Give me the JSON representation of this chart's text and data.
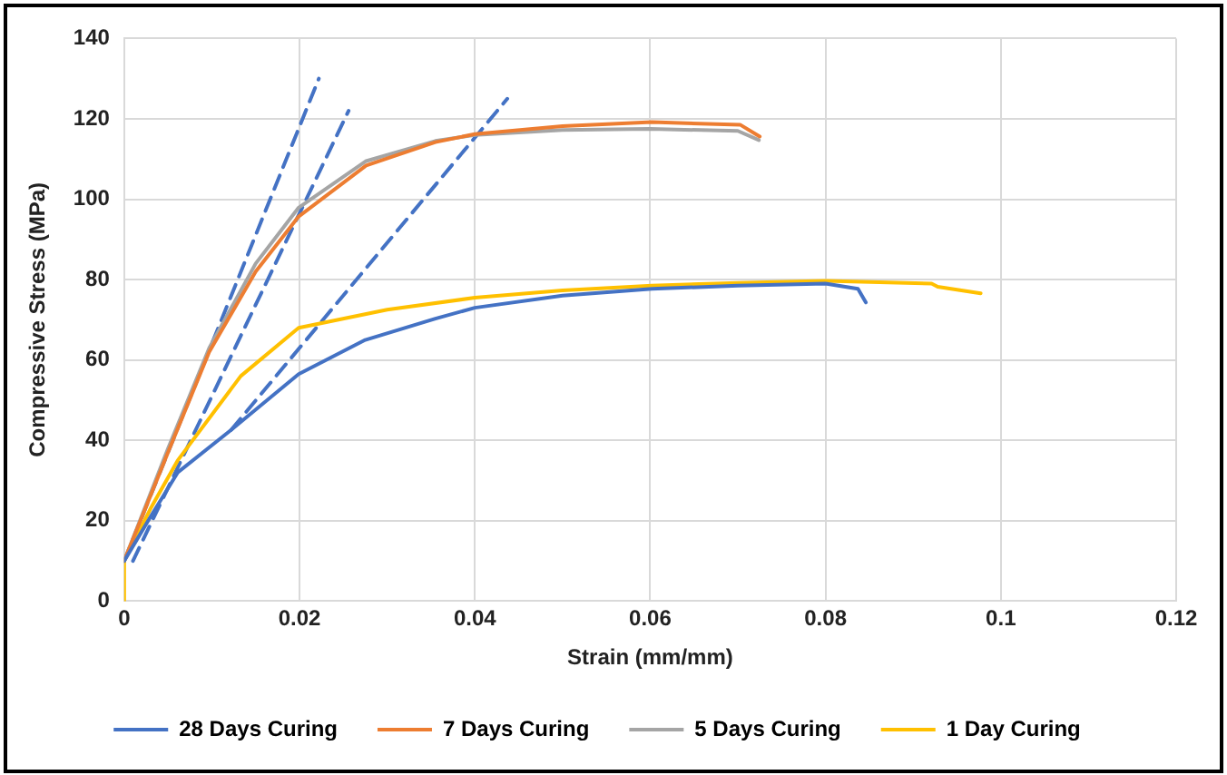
{
  "chart_data": {
    "type": "line",
    "xlabel": "Strain (mm/mm)",
    "ylabel": "Compressive Stress (MPa)",
    "xlim": [
      0,
      0.12
    ],
    "xticks": [
      0,
      0.02,
      0.04,
      0.06,
      0.08,
      0.1,
      0.12
    ],
    "ylim": [
      0,
      140
    ],
    "yticks": [
      0,
      20,
      40,
      60,
      80,
      100,
      120,
      140
    ],
    "grid": true,
    "legend": "bottom",
    "marker": "none",
    "line_style": "solid",
    "series": [
      {
        "name": "28 Days Curing",
        "color": "#4472c4",
        "x": [
          0,
          0.003,
          0.0061,
          0.0122,
          0.0199,
          0.0275,
          0.0355,
          0.04,
          0.05,
          0.0602,
          0.07,
          0.08,
          0.0837,
          0.0846
        ],
        "values": [
          10,
          21,
          32,
          42.6,
          56.5,
          65,
          70.3,
          73,
          76,
          77.7,
          78.5,
          79,
          77.7,
          74.3
        ]
      },
      {
        "name": "7 Days Curing",
        "color": "#ed7d31",
        "x": [
          0,
          0.005,
          0.0097,
          0.015,
          0.0199,
          0.0276,
          0.0355,
          0.04,
          0.05,
          0.0602,
          0.0703,
          0.0725
        ],
        "values": [
          10,
          37,
          62,
          82,
          95.7,
          108.4,
          114.2,
          116.2,
          118.2,
          119.2,
          118.5,
          115.6
        ]
      },
      {
        "name": "5 Days Curing",
        "color": "#a5a5a5",
        "x": [
          0,
          0.005,
          0.0097,
          0.015,
          0.0199,
          0.0276,
          0.0355,
          0.04,
          0.05,
          0.06,
          0.07,
          0.0724
        ],
        "values": [
          10,
          38,
          63,
          84,
          97.9,
          109.5,
          114.5,
          116,
          117.2,
          117.5,
          117,
          114.7
        ]
      },
      {
        "name": "1 Day Curing",
        "color": "#ffc000",
        "x": [
          0,
          0,
          0.003,
          0.0061,
          0.0133,
          0.0199,
          0.03,
          0.04,
          0.05,
          0.0602,
          0.07,
          0.08,
          0.0921,
          0.0928,
          0.0977
        ],
        "values": [
          0,
          10,
          23,
          35,
          56,
          68,
          72.5,
          75.5,
          77.3,
          78.5,
          79.2,
          79.7,
          79,
          78.2,
          76.6
        ]
      },
      {
        "type": "line",
        "line_style": "dashed",
        "color": "#4472c4",
        "x": [
          0,
          0.0222
        ],
        "values": [
          10,
          130
        ]
      },
      {
        "type": "line",
        "line_style": "dashed",
        "color": "#4472c4",
        "x": [
          0.001,
          0.0256
        ],
        "values": [
          10,
          122
        ]
      },
      {
        "type": "line",
        "line_style": "dashed",
        "color": "#4472c4",
        "x": [
          0.0122,
          0.0437
        ],
        "values": [
          42.6,
          125
        ]
      }
    ]
  }
}
